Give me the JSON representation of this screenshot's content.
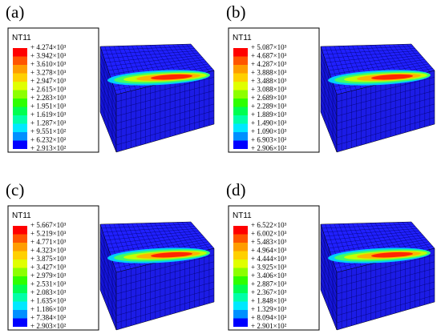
{
  "panels": [
    {
      "label": "(a)",
      "legend_title": "NT11",
      "legend_values": [
        "+ 4.274×10³",
        "+ 3.942×10³",
        "+ 3.610×10³",
        "+ 3.278×10³",
        "+ 2.947×10³",
        "+ 2.615×10³",
        "+ 2.283×10³",
        "+ 1.951×10³",
        "+ 1.619×10³",
        "+ 1.287×10³",
        "+ 9.551×10²",
        "+ 6.232×10²",
        "+ 2.913×10²"
      ]
    },
    {
      "label": "(b)",
      "legend_title": "NT11",
      "legend_values": [
        "+ 5.087×10³",
        "+ 4.687×10³",
        "+ 4.287×10³",
        "+ 3.888×10³",
        "+ 3.488×10³",
        "+ 3.088×10³",
        "+ 2.689×10³",
        "+ 2.289×10³",
        "+ 1.889×10³",
        "+ 1.490×10³",
        "+ 1.090×10³",
        "+ 6.903×10²",
        "+ 2.906×10²"
      ]
    },
    {
      "label": "(c)",
      "legend_title": "NT11",
      "legend_values": [
        "+ 5.667×10³",
        "+ 5.219×10³",
        "+ 4.771×10³",
        "+ 4.323×10³",
        "+ 3.875×10³",
        "+ 3.427×10³",
        "+ 2.979×10³",
        "+ 2.531×10³",
        "+ 2.083×10³",
        "+ 1.635×10³",
        "+ 1.186×10³",
        "+ 7.384×10²",
        "+ 2.903×10²"
      ]
    },
    {
      "label": "(d)",
      "legend_title": "NT11",
      "legend_values": [
        "+ 6.522×10³",
        "+ 6.002×10³",
        "+ 5.483×10³",
        "+ 4.964×10³",
        "+ 4.444×10³",
        "+ 3.925×10³",
        "+ 3.406×10³",
        "+ 2.887×10³",
        "+ 2.367×10³",
        "+ 1.848×10³",
        "+ 1.329×10³",
        "+ 8.094×10²",
        "+ 2.901×10²"
      ]
    }
  ]
}
